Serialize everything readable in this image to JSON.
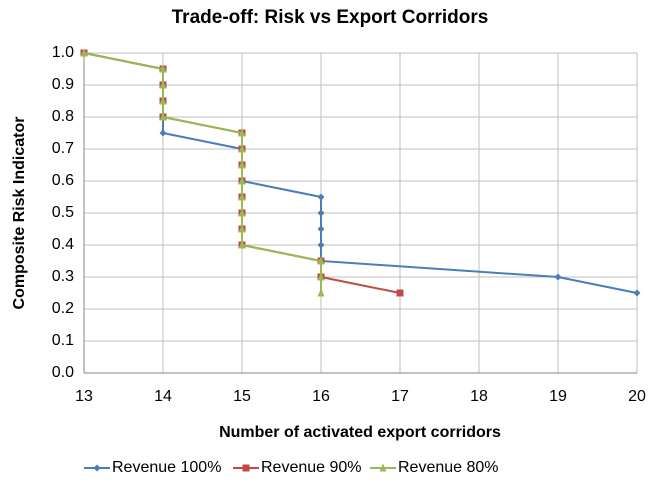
{
  "chart_data": {
    "type": "line",
    "title": "Trade-off: Risk vs Export Corridors",
    "x_label": "Number of activated export corridors",
    "y_label": "Composite Risk Indicator",
    "xlim": [
      13,
      20
    ],
    "xticks": [
      13,
      14,
      15,
      16,
      17,
      18,
      19,
      20
    ],
    "ylim": [
      0,
      1
    ],
    "yticks": [
      {
        "value": 0,
        "label": "0.0"
      },
      0.1,
      0.2,
      0.3,
      0.4,
      0.5,
      0.6,
      0.7,
      0.8,
      0.9,
      {
        "value": 1,
        "label": "1.0"
      }
    ],
    "grid": true,
    "legend": "bottom",
    "series": [
      {
        "name": "Revenue 100%",
        "color": "#4a7ebb",
        "marker": "diamond",
        "x": [
          13,
          14,
          14,
          14,
          14,
          14,
          15,
          15,
          15,
          16,
          16,
          16,
          16,
          16,
          19,
          20
        ],
        "values": [
          1.0,
          0.95,
          0.9,
          0.85,
          0.8,
          0.75,
          0.7,
          0.65,
          0.6,
          0.55,
          0.5,
          0.45,
          0.4,
          0.35,
          0.3,
          0.25
        ]
      },
      {
        "name": "Revenue 90%",
        "color": "#be4b48",
        "marker": "square",
        "x": [
          13,
          14,
          14,
          14,
          14,
          15,
          15,
          15,
          15,
          15,
          15,
          15,
          15,
          16,
          16,
          17
        ],
        "values": [
          1.0,
          0.95,
          0.9,
          0.85,
          0.8,
          0.75,
          0.7,
          0.65,
          0.6,
          0.55,
          0.5,
          0.45,
          0.4,
          0.35,
          0.3,
          0.25
        ]
      },
      {
        "name": "Revenue 80%",
        "color": "#98b954",
        "marker": "triangle",
        "x": [
          13,
          14,
          14,
          14,
          14,
          15,
          15,
          15,
          15,
          15,
          15,
          15,
          15,
          16,
          16,
          16
        ],
        "values": [
          1.0,
          0.95,
          0.9,
          0.85,
          0.8,
          0.75,
          0.7,
          0.65,
          0.6,
          0.55,
          0.5,
          0.45,
          0.4,
          0.35,
          0.3,
          0.25
        ]
      }
    ]
  }
}
